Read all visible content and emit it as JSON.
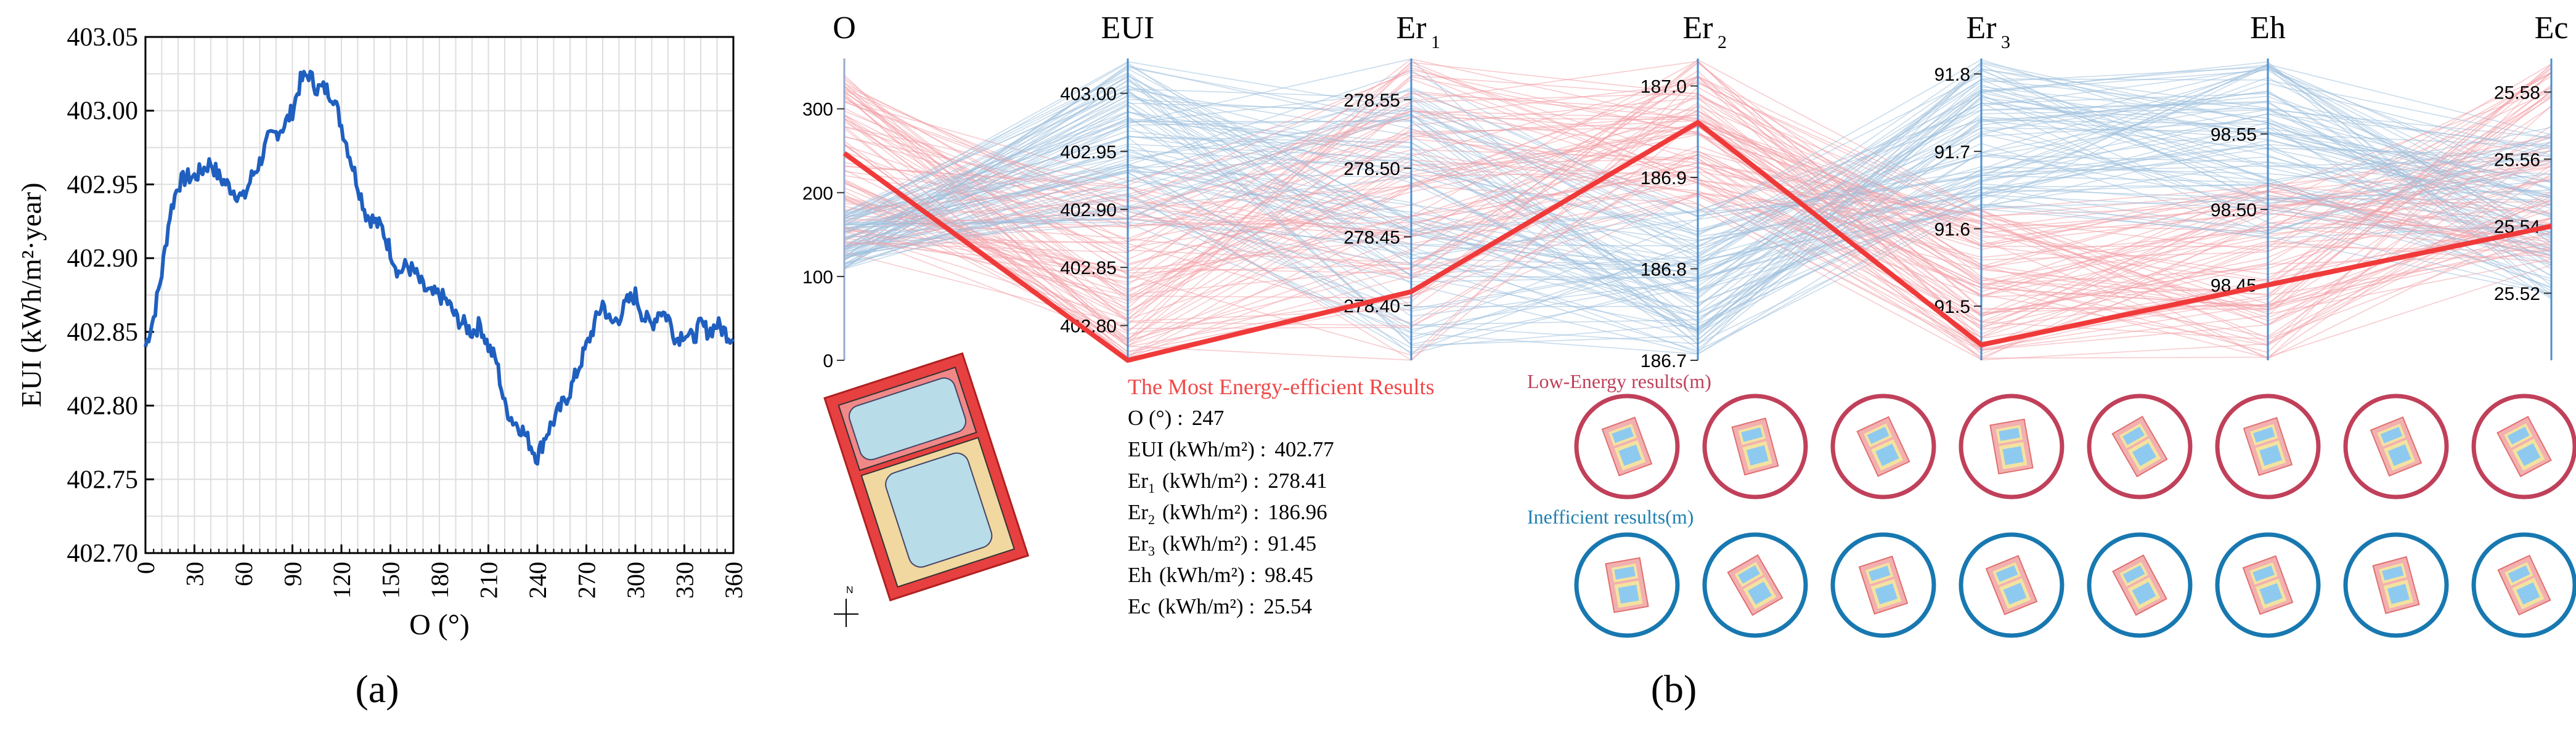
{
  "colors": {
    "blue_line": "#1f5fbf",
    "red_highlight": "#f03a3a",
    "red_lines": "#f2a0a8",
    "blue_lines": "#9dbfdc",
    "axis_blue": "#4a8fd0",
    "title_red": "#f04848",
    "low_energy_label": "#c0405a",
    "low_energy_circle": "#c0405a",
    "inefficient_label": "#2080b0",
    "inefficient_circle": "#1878b0"
  },
  "chart_data": [
    {
      "type": "line",
      "panel_label": "(a)",
      "title": "",
      "xlabel": "O (°)",
      "ylabel": "EUI (kWh/m²·year)",
      "xlim": [
        0,
        360
      ],
      "ylim": [
        402.7,
        403.05
      ],
      "xticks": [
        "0",
        "30",
        "60",
        "90",
        "120",
        "150",
        "180",
        "210",
        "240",
        "270",
        "300",
        "330",
        "360"
      ],
      "yticks": [
        "402.70",
        "402.75",
        "402.80",
        "402.85",
        "402.90",
        "402.95",
        "403.00",
        "403.05"
      ],
      "grid": true,
      "series": [
        {
          "name": "EUI",
          "x": [
            0,
            5,
            10,
            15,
            20,
            25,
            30,
            35,
            40,
            45,
            50,
            55,
            60,
            65,
            70,
            75,
            80,
            85,
            90,
            95,
            100,
            105,
            110,
            115,
            120,
            125,
            130,
            135,
            140,
            145,
            150,
            155,
            160,
            165,
            170,
            175,
            180,
            185,
            190,
            195,
            200,
            205,
            210,
            215,
            220,
            225,
            230,
            235,
            240,
            245,
            250,
            255,
            260,
            265,
            270,
            275,
            280,
            285,
            290,
            295,
            300,
            305,
            310,
            315,
            320,
            325,
            330,
            335,
            340,
            345,
            350,
            355,
            360
          ],
          "values": [
            402.84,
            402.86,
            402.89,
            402.93,
            402.95,
            402.955,
            402.955,
            402.96,
            402.965,
            402.955,
            402.95,
            402.945,
            402.94,
            402.955,
            402.965,
            402.98,
            402.985,
            402.99,
            403.0,
            403.02,
            403.025,
            403.015,
            403.015,
            403.01,
            402.99,
            402.97,
            402.95,
            402.93,
            402.925,
            402.92,
            402.905,
            402.89,
            402.895,
            402.89,
            402.88,
            402.875,
            402.875,
            402.87,
            402.86,
            402.855,
            402.85,
            402.855,
            402.84,
            402.83,
            402.8,
            402.79,
            402.785,
            402.775,
            402.765,
            402.78,
            402.79,
            402.8,
            402.81,
            402.825,
            402.84,
            402.855,
            402.87,
            402.855,
            402.86,
            402.87,
            402.875,
            402.86,
            402.855,
            402.865,
            402.86,
            402.845,
            402.85,
            402.845,
            402.855,
            402.85,
            402.855,
            402.85,
            402.845
          ]
        }
      ]
    },
    {
      "type": "parallel-coordinates",
      "panel_label": "(b)",
      "axes": [
        {
          "name": "O",
          "ticks": [
            "0",
            "100",
            "200",
            "300"
          ],
          "range": [
            0,
            360
          ]
        },
        {
          "name": "EUI",
          "ticks": [
            "402.80",
            "402.85",
            "402.90",
            "402.95",
            "403.00"
          ],
          "range": [
            402.77,
            403.03
          ]
        },
        {
          "name": "Er",
          "subscript": "1",
          "ticks": [
            "278.40",
            "278.45",
            "278.50",
            "278.55"
          ],
          "range": [
            278.36,
            278.58
          ]
        },
        {
          "name": "Er",
          "subscript": "2",
          "ticks": [
            "186.7",
            "186.8",
            "186.9",
            "187.0"
          ],
          "range": [
            186.7,
            187.03
          ]
        },
        {
          "name": "Er",
          "subscript": "3",
          "ticks": [
            "91.5",
            "91.6",
            "91.7",
            "91.8"
          ],
          "range": [
            91.43,
            91.82
          ]
        },
        {
          "name": "Eh",
          "ticks": [
            "98.45",
            "98.50",
            "98.55"
          ],
          "range": [
            98.4,
            98.6
          ]
        },
        {
          "name": "Ec",
          "ticks": [
            "25.52",
            "25.54",
            "25.56",
            "25.58"
          ],
          "range": [
            25.5,
            25.59
          ]
        }
      ],
      "highlight": {
        "name": "The Most Energy-efficient Results",
        "values": [
          247,
          402.77,
          278.41,
          186.96,
          91.45,
          98.45,
          25.54
        ]
      },
      "low_energy_series_label": "Low-Energy results(m)",
      "inefficient_series_label": "Inefficient results(m)"
    }
  ],
  "result_panel": {
    "title": "The Most Energy-efficient Results",
    "rows": [
      {
        "label": "O (°) :",
        "sub": "",
        "unit": "",
        "value": "247"
      },
      {
        "label": "EUI (kWh/m²) :",
        "sub": "",
        "unit": "",
        "value": "402.77"
      },
      {
        "label": "Er",
        "sub": "1",
        "unit": "(kWh/m²) :",
        "value": "278.41"
      },
      {
        "label": "Er",
        "sub": "2",
        "unit": "(kWh/m²) :",
        "value": "186.96"
      },
      {
        "label": "Er",
        "sub": "3",
        "unit": "(kWh/m²) :",
        "value": "91.45"
      },
      {
        "label": "Eh",
        "sub": "",
        "unit": "(kWh/m²) :",
        "value": "98.45"
      },
      {
        "label": "Ec",
        "sub": "",
        "unit": "(kWh/m²) :",
        "value": "25.54"
      }
    ]
  },
  "site_plan": {
    "north_label": "N"
  },
  "labels": {
    "panel_a": "(a)",
    "panel_b": "(b)",
    "low_energy": "Low-Energy results(m)",
    "inefficient": "Inefficient results(m)"
  }
}
